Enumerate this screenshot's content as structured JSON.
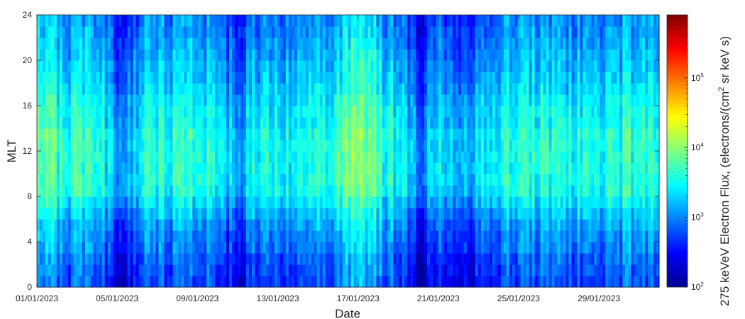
{
  "chart_data": {
    "type": "heatmap",
    "title": "",
    "xlabel": "Date",
    "ylabel": "MLT",
    "colorbar_label": "275 keVeV Electron Flux, (electrons/(cm2 sr keV s)",
    "colorbar_label_parts": {
      "before": "275 keVeV Electron Flux, (electrons/(cm",
      "sup": "2",
      "after": " sr keV s)"
    },
    "colormap": "jet",
    "colorbar_scale": "log",
    "colorbar_range": [
      100,
      800000
    ],
    "colorbar_ticks": [
      {
        "value": 100,
        "base": "10",
        "exp": "2"
      },
      {
        "value": 1000,
        "base": "10",
        "exp": "3"
      },
      {
        "value": 10000,
        "base": "10",
        "exp": "4"
      },
      {
        "value": 100000,
        "base": "10",
        "exp": "5"
      }
    ],
    "x_range": [
      "2023-01-01",
      "2023-02-01"
    ],
    "x_ticks": [
      "01/01/2023",
      "05/01/2023",
      "09/01/2023",
      "13/01/2023",
      "17/01/2023",
      "21/01/2023",
      "25/01/2023",
      "29/01/2023"
    ],
    "y_range": [
      0,
      24
    ],
    "y_ticks": [
      "0",
      "4",
      "8",
      "12",
      "16",
      "20",
      "24"
    ],
    "mlt_bins": [
      0,
      1,
      2,
      3,
      4,
      5,
      6,
      7,
      8,
      9,
      10,
      11,
      12,
      13,
      14,
      15,
      16,
      17,
      18,
      19,
      20,
      21,
      22,
      23
    ],
    "log10_flux_by_mlt": [
      2.75,
      2.8,
      2.85,
      2.95,
      3.0,
      3.1,
      3.2,
      3.35,
      3.5,
      3.55,
      3.55,
      3.55,
      3.55,
      3.55,
      3.45,
      3.45,
      3.4,
      3.3,
      3.25,
      3.2,
      3.15,
      3.1,
      3.05,
      3.0
    ],
    "enhanced_flux_dates": [
      {
        "date": "2023-01-01",
        "log10_flux_max": 3.9
      },
      {
        "date": "2023-01-04",
        "log10_flux_max": 3.7
      },
      {
        "date": "2023-01-17",
        "log10_flux_max": 3.95
      },
      {
        "date": "2023-01-30",
        "log10_flux_max": 3.6
      }
    ],
    "low_flux_dates": [
      {
        "date": "2023-01-05",
        "log10_flux_min": 2.5
      },
      {
        "date": "2023-01-11",
        "log10_flux_min": 2.7
      },
      {
        "date": "2023-01-20",
        "log10_flux_min": 2.5
      },
      {
        "date": "2023-01-22",
        "log10_flux_min": 2.6
      }
    ]
  }
}
